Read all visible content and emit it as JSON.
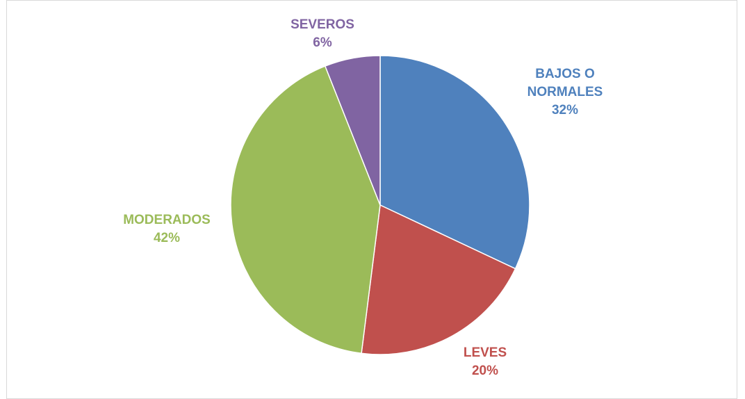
{
  "chart_data": {
    "type": "pie",
    "title": "",
    "start_angle_deg": 0,
    "direction": "clockwise",
    "legend": "none",
    "slices": [
      {
        "label_lines": [
          "BAJOS O",
          "NORMALES"
        ],
        "percent_label": "32%",
        "value": 32,
        "color": "#4f81bd"
      },
      {
        "label_lines": [
          "LEVES"
        ],
        "percent_label": "20%",
        "value": 20,
        "color": "#c0504d"
      },
      {
        "label_lines": [
          "MODERADOS"
        ],
        "percent_label": "42%",
        "value": 42,
        "color": "#9bbb59"
      },
      {
        "label_lines": [
          "SEVEROS"
        ],
        "percent_label": "6%",
        "value": 6,
        "color": "#8064a2"
      }
    ]
  }
}
